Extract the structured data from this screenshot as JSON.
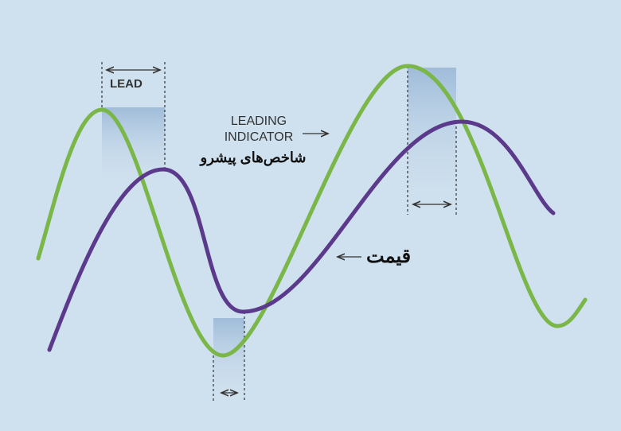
{
  "labels": {
    "lead": "LEAD",
    "leading_indicator_line1": "LEADING",
    "leading_indicator_line2": "INDICATOR",
    "leading_indicator_fa": "شاخص‌های پیشرو",
    "price_fa": "قیمت"
  },
  "colors": {
    "background": "#cfe0ee",
    "leading_indicator": "#7ab648",
    "price": "#5b3a8c",
    "lead_shading": "#9fbcd9"
  }
}
